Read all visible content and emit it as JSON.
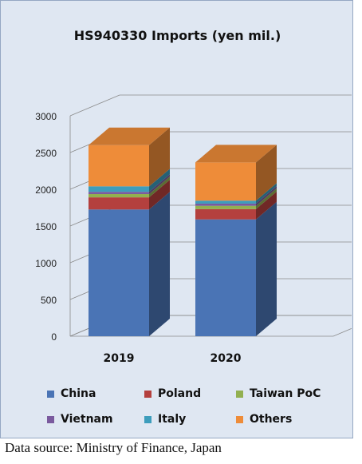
{
  "chart_data": {
    "type": "bar",
    "stacked": true,
    "three_d": true,
    "title": "HS940330 Imports (yen mil.)",
    "categories": [
      "2019",
      "2020"
    ],
    "y_ticks": [
      "0",
      "500",
      "1000",
      "1500",
      "2000",
      "2500",
      "3000"
    ],
    "ylim": [
      0,
      3000
    ],
    "grid": true,
    "legend_position": "bottom",
    "series": [
      {
        "name": "China",
        "values": [
          1725,
          1590
        ],
        "color": "#4a74b5"
      },
      {
        "name": "Poland",
        "values": [
          165,
          140
        ],
        "color": "#b4403e"
      },
      {
        "name": "Taiwan PoC",
        "values": [
          45,
          45
        ],
        "color": "#92b050"
      },
      {
        "name": "Vietnam",
        "values": [
          30,
          30
        ],
        "color": "#7a5a9e"
      },
      {
        "name": "Italy",
        "values": [
          75,
          40
        ],
        "color": "#3d9dbc"
      },
      {
        "name": "Others",
        "values": [
          560,
          520
        ],
        "color": "#ee8c39"
      }
    ]
  },
  "source_note": "Data source: Ministry of Finance, Japan"
}
